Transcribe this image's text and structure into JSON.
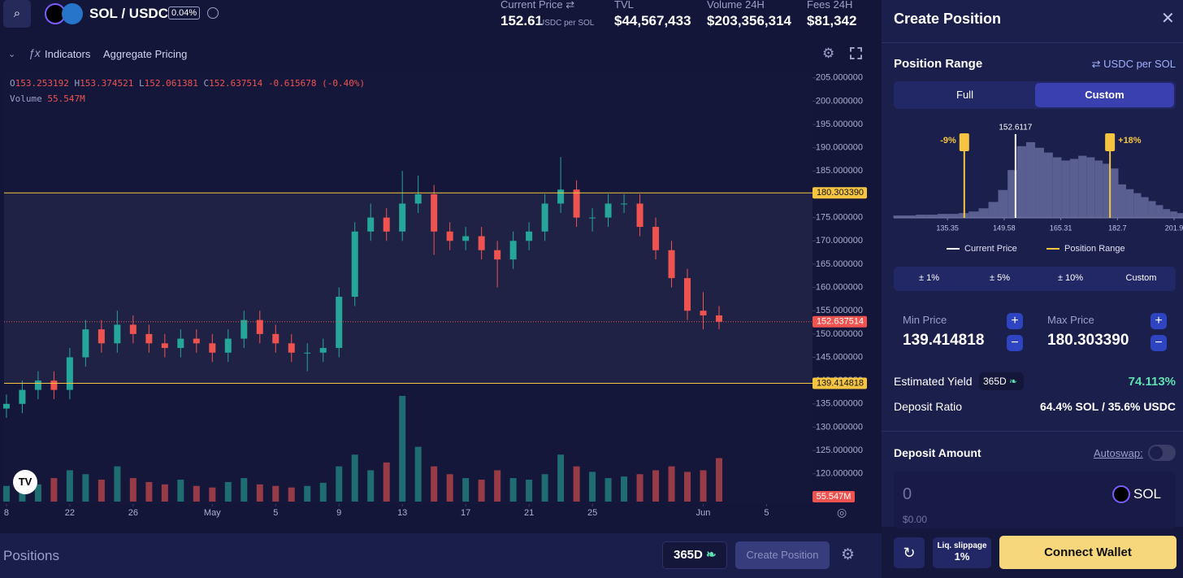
{
  "header": {
    "pair": "SOL / USDC",
    "fee": "0.04%",
    "stats": [
      {
        "label": "Current Price ⇄",
        "value": "152.61",
        "unit": "USDC per SOL"
      },
      {
        "label": "TVL",
        "value": "$44,567,433"
      },
      {
        "label": "Volume 24H",
        "value": "$203,356,314"
      },
      {
        "label": "Fees 24H",
        "value": "$81,342"
      }
    ]
  },
  "toolbar": {
    "indicators": "Indicators",
    "aggregate": "Aggregate Pricing"
  },
  "legend": {
    "o_label": "O",
    "o": "153.253192",
    "h_label": "H",
    "h": "153.374521",
    "l_label": "L",
    "l": "152.061381",
    "c_label": "C",
    "c": "152.637514",
    "change": "-0.615678 (-0.40%)",
    "volume_label": "Volume",
    "volume": "55.547M"
  },
  "chart_data": {
    "type": "candlestick",
    "xlim": [
      -0.15,
      50.9
    ],
    "xticks": [
      {
        "value": 0,
        "label": "8"
      },
      {
        "value": 4,
        "label": "22"
      },
      {
        "value": 8,
        "label": "26"
      },
      {
        "value": 13,
        "label": "May"
      },
      {
        "value": 17,
        "label": "5"
      },
      {
        "value": 21,
        "label": "9"
      },
      {
        "value": 25,
        "label": "13"
      },
      {
        "value": 29,
        "label": "17"
      },
      {
        "value": 33,
        "label": "21"
      },
      {
        "value": 37,
        "label": "25"
      },
      {
        "value": 44,
        "label": "Jun"
      },
      {
        "value": 48,
        "label": "5"
      }
    ],
    "ylim": [
      113.5,
      206
    ],
    "yticks": [
      {
        "value": 205,
        "label": "205.000000"
      },
      {
        "value": 200,
        "label": "200.000000"
      },
      {
        "value": 195,
        "label": "195.000000"
      },
      {
        "value": 190,
        "label": "190.000000"
      },
      {
        "value": 185,
        "label": "185.000000"
      },
      {
        "value": 180,
        "label": "180.000000"
      },
      {
        "value": 175,
        "label": "175.000000"
      },
      {
        "value": 170,
        "label": "170.000000"
      },
      {
        "value": 165,
        "label": "165.000000"
      },
      {
        "value": 160,
        "label": "160.000000"
      },
      {
        "value": 155,
        "label": "155.000000"
      },
      {
        "value": 150,
        "label": "150.000000"
      },
      {
        "value": 145,
        "label": "145.000000"
      },
      {
        "value": 140,
        "label": "140.000000"
      },
      {
        "value": 135,
        "label": "135.000000"
      },
      {
        "value": 130,
        "label": "130.000000"
      },
      {
        "value": 125,
        "label": "125.000000"
      },
      {
        "value": 120,
        "label": "120.000000"
      }
    ],
    "up_color": "#26a69a",
    "down_color": "#ef5350",
    "range_color": "#f5c542",
    "ohlc": [
      [
        134,
        137,
        132,
        135
      ],
      [
        135,
        140,
        133,
        138
      ],
      [
        138,
        142,
        136,
        140
      ],
      [
        140,
        142,
        136,
        138
      ],
      [
        138,
        147,
        136,
        145
      ],
      [
        145,
        153,
        143,
        151
      ],
      [
        151,
        153,
        146,
        148
      ],
      [
        148,
        155,
        146,
        152
      ],
      [
        152,
        154,
        148,
        150
      ],
      [
        150,
        152,
        146,
        148
      ],
      [
        148,
        150,
        145,
        147
      ],
      [
        147,
        151,
        145,
        149
      ],
      [
        149,
        151,
        146,
        148
      ],
      [
        148,
        150,
        144,
        146
      ],
      [
        146,
        151,
        144,
        149
      ],
      [
        149,
        155,
        147,
        153
      ],
      [
        153,
        155,
        148,
        150
      ],
      [
        150,
        152,
        146,
        148
      ],
      [
        148,
        150,
        144,
        146
      ],
      [
        146,
        148,
        142,
        146
      ],
      [
        146,
        149,
        144,
        147
      ],
      [
        147,
        160,
        145,
        158
      ],
      [
        158,
        174,
        156,
        172
      ],
      [
        172,
        178,
        170,
        175
      ],
      [
        175,
        177,
        170,
        172
      ],
      [
        172,
        185,
        170,
        178
      ],
      [
        178,
        184,
        176,
        180
      ],
      [
        180,
        182,
        167,
        172
      ],
      [
        172,
        174,
        168,
        170
      ],
      [
        170,
        173,
        168,
        171
      ],
      [
        171,
        173,
        166,
        168
      ],
      [
        168,
        170,
        160,
        166
      ],
      [
        166,
        172,
        164,
        170
      ],
      [
        170,
        174,
        168,
        172
      ],
      [
        172,
        180,
        170,
        178
      ],
      [
        178,
        188,
        176,
        181
      ],
      [
        181,
        183,
        173,
        175
      ],
      [
        175,
        177,
        172,
        175
      ],
      [
        175,
        180,
        173,
        178
      ],
      [
        178,
        180,
        176,
        178
      ],
      [
        178,
        180,
        171,
        173
      ],
      [
        173,
        175,
        166,
        168
      ],
      [
        168,
        170,
        160,
        162
      ],
      [
        162,
        164,
        153,
        155
      ],
      [
        155,
        159,
        151,
        154
      ],
      [
        154,
        156,
        151,
        152.637514
      ]
    ],
    "volume": [
      20,
      25,
      22,
      30,
      40,
      35,
      28,
      45,
      30,
      25,
      22,
      28,
      20,
      18,
      25,
      30,
      22,
      20,
      18,
      20,
      24,
      45,
      60,
      40,
      50,
      135,
      70,
      45,
      35,
      30,
      28,
      40,
      30,
      28,
      35,
      60,
      45,
      38,
      30,
      32,
      35,
      40,
      45,
      38,
      40,
      55.547
    ],
    "range_max": 180.30339,
    "range_max_label": "180.303390",
    "current": 152.637514,
    "current_label": "152.637514",
    "range_min": 139.414818,
    "range_min_label": "139.414818",
    "volume_label": "55.547M"
  },
  "bottom": {
    "positions": "Positions",
    "period": "365D",
    "create": "Create Position"
  },
  "panel": {
    "title": "Create Position",
    "range_title": "Position Range",
    "unit": "⇄ USDC per SOL",
    "modes": [
      "Full",
      "Custom"
    ],
    "range_chart": {
      "type": "histogram",
      "log": true,
      "xlim": [
        123.1,
        205.1
      ],
      "ylim": [
        0,
        100
      ],
      "bins": [
        123,
        125.5,
        128,
        130.5,
        133,
        135.5,
        138,
        140.5,
        143,
        145.5,
        148,
        150.5,
        153,
        155.5,
        158,
        160.5,
        163,
        165.5,
        168,
        170.5,
        173,
        175.5,
        178,
        180.5,
        183,
        185.5,
        188,
        190.5,
        193,
        195.5,
        198,
        200.5,
        203,
        205.5
      ],
      "counts": [
        3,
        3,
        4,
        4,
        5,
        5,
        6,
        8,
        12,
        20,
        35,
        60,
        90,
        95,
        88,
        82,
        76,
        72,
        74,
        78,
        76,
        72,
        68,
        62,
        42,
        36,
        31,
        26,
        21,
        16,
        11,
        8,
        6
      ],
      "xticks": [
        135.35,
        149.58,
        165.31,
        182.7,
        {
          "value": 201.9,
          "label": "201.9"
        }
      ],
      "current": 152.6117,
      "current_label": "152.6117",
      "min": 139.414818,
      "max": 180.30339,
      "min_label": "-9%",
      "max_label": "+18%",
      "legend": [
        "Current Price",
        "Position Range"
      ],
      "bar_color": "#5a5f91",
      "line_color": "#f5c542"
    },
    "presets": [
      "± 1%",
      "± 5%",
      "± 10%",
      "Custom"
    ],
    "min_label": "Min Price",
    "min_value": "139.414818",
    "max_label": "Max Price",
    "max_value": "180.303390",
    "yield_label": "Estimated Yield",
    "yield_period": "365D",
    "yield_value": "74.113%",
    "ratio_label": "Deposit Ratio",
    "ratio_value": "64.4% SOL / 35.6% USDC",
    "deposit_title": "Deposit Amount",
    "autoswap": "Autoswap:",
    "amount": "0",
    "token": "SOL",
    "usd": "$0.00",
    "slippage_label": "Liq. slippage",
    "slippage": "1%",
    "connect": "Connect Wallet"
  }
}
